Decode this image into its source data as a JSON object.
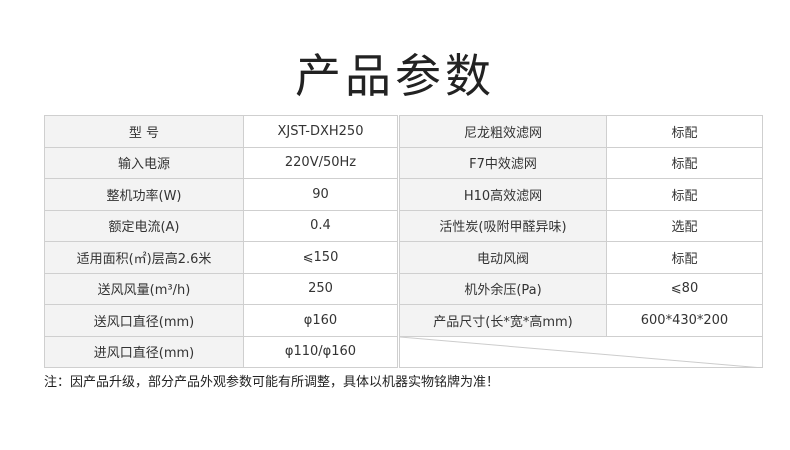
{
  "title": "产品参数",
  "left": [
    {
      "label": "型 号",
      "value": "XJST-DXH250"
    },
    {
      "label": "输入电源",
      "value": "220V/50Hz"
    },
    {
      "label": "整机功率(W)",
      "value": "90"
    },
    {
      "label": "额定电流(A)",
      "value": "0.4"
    },
    {
      "label": "适用面积(㎡)层高2.6米",
      "value": "⩽150"
    },
    {
      "label": "送风风量(m³/h)",
      "value": "250"
    },
    {
      "label": "送风口直径(mm)",
      "value": "φ160"
    },
    {
      "label": "进风口直径(mm)",
      "value": "φ110/φ160"
    }
  ],
  "right": [
    {
      "label": "尼龙粗效滤网",
      "value": "标配"
    },
    {
      "label": "F7中效滤网",
      "value": "标配"
    },
    {
      "label": "H10高效滤网",
      "value": "标配"
    },
    {
      "label": "活性炭(吸附甲醛异味)",
      "value": "选配"
    },
    {
      "label": "电动风阀",
      "value": "标配"
    },
    {
      "label": "机外余压(Pa)",
      "value": "⩽80"
    },
    {
      "label": "产品尺寸(长*宽*高mm)",
      "value": "600*430*200"
    }
  ],
  "note": "注：因产品升级，部分产品外观参数可能有所调整，具体以机器实物铭牌为准！"
}
